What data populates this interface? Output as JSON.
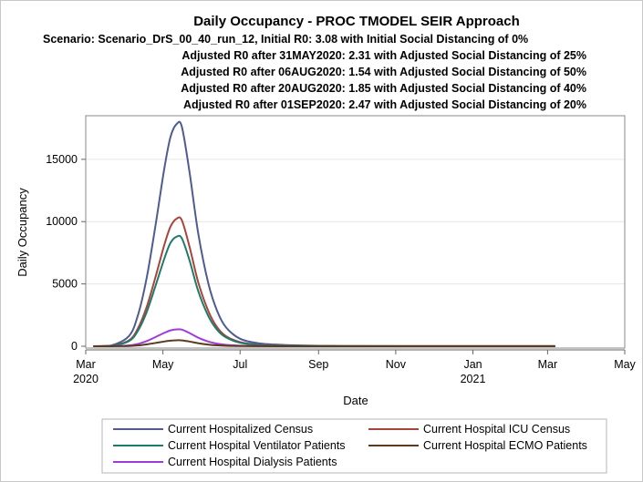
{
  "chart_data": {
    "type": "line",
    "title": "Daily Occupancy - PROC TMODEL SEIR Approach",
    "subtitles": [
      "Scenario: Scenario_DrS_00_40_run_12, Initial R0: 3.08 with Initial Social Distancing of 0%",
      "Adjusted R0 after 31MAY2020: 2.31 with Adjusted Social Distancing of 25%",
      "Adjusted R0 after 06AUG2020: 1.54 with Adjusted Social Distancing of 50%",
      "Adjusted R0 after 20AUG2020: 1.85 with Adjusted Social Distancing of 40%",
      "Adjusted R0 after 01SEP2020: 2.47 with Adjusted Social Distancing of 20%"
    ],
    "xlabel": "Date",
    "ylabel": "Daily Occupancy",
    "xlim": [
      "2020-03-01",
      "2021-05-01"
    ],
    "ylim": [
      0,
      18500
    ],
    "grid": true,
    "legend_position": "bottom",
    "x_ticks": [
      {
        "date": "2020-03-01",
        "label": "Mar",
        "sublabel": "2020"
      },
      {
        "date": "2020-05-01",
        "label": "May",
        "sublabel": ""
      },
      {
        "date": "2020-07-01",
        "label": "Jul",
        "sublabel": ""
      },
      {
        "date": "2020-09-01",
        "label": "Sep",
        "sublabel": ""
      },
      {
        "date": "2020-11-01",
        "label": "Nov",
        "sublabel": ""
      },
      {
        "date": "2021-01-01",
        "label": "Jan",
        "sublabel": "2021"
      },
      {
        "date": "2021-03-01",
        "label": "Mar",
        "sublabel": ""
      },
      {
        "date": "2021-05-01",
        "label": "May",
        "sublabel": ""
      }
    ],
    "y_ticks": [
      0,
      5000,
      10000,
      15000
    ],
    "x": [
      "2020-03-07",
      "2020-03-21",
      "2020-04-04",
      "2020-04-11",
      "2020-04-18",
      "2020-04-25",
      "2020-05-02",
      "2020-05-07",
      "2020-05-12",
      "2020-05-16",
      "2020-05-22",
      "2020-05-29",
      "2020-06-06",
      "2020-06-13",
      "2020-06-20",
      "2020-07-01",
      "2020-07-15",
      "2020-08-01",
      "2020-09-01",
      "2020-10-01",
      "2020-12-01",
      "2021-02-01",
      "2021-03-07"
    ],
    "series": [
      {
        "name": "Current Hospitalized Census",
        "color": "#4f5b93",
        "values": [
          0,
          60,
          800,
          2400,
          5400,
          9600,
          14200,
          16800,
          17850,
          17600,
          14000,
          9000,
          5000,
          2800,
          1500,
          600,
          250,
          120,
          40,
          20,
          10,
          10,
          10
        ]
      },
      {
        "name": "Current Hospital ICU Census",
        "color": "#a8443a",
        "values": [
          0,
          35,
          460,
          1380,
          3100,
          5500,
          8100,
          9600,
          10250,
          10100,
          8000,
          5100,
          2800,
          1500,
          800,
          330,
          130,
          60,
          20,
          10,
          5,
          5,
          5
        ]
      },
      {
        "name": "Current Hospital Ventilator Patients",
        "color": "#1d7b6c",
        "values": [
          0,
          30,
          400,
          1200,
          2700,
          4800,
          7000,
          8300,
          8800,
          8650,
          6900,
          4400,
          2400,
          1300,
          700,
          280,
          110,
          50,
          20,
          10,
          5,
          5,
          5
        ]
      },
      {
        "name": "Current Hospital ECMO Patients",
        "color": "#5c3a1e",
        "values": [
          0,
          2,
          22,
          65,
          150,
          260,
          380,
          450,
          480,
          470,
          380,
          240,
          130,
          70,
          40,
          15,
          6,
          3,
          1,
          0,
          0,
          0,
          0
        ]
      },
      {
        "name": "Current Hospital Dialysis Patients",
        "color": "#a13bd8",
        "values": [
          0,
          5,
          60,
          180,
          410,
          730,
          1070,
          1270,
          1350,
          1330,
          1060,
          680,
          370,
          200,
          110,
          45,
          18,
          8,
          3,
          1,
          0,
          0,
          0
        ]
      }
    ]
  }
}
